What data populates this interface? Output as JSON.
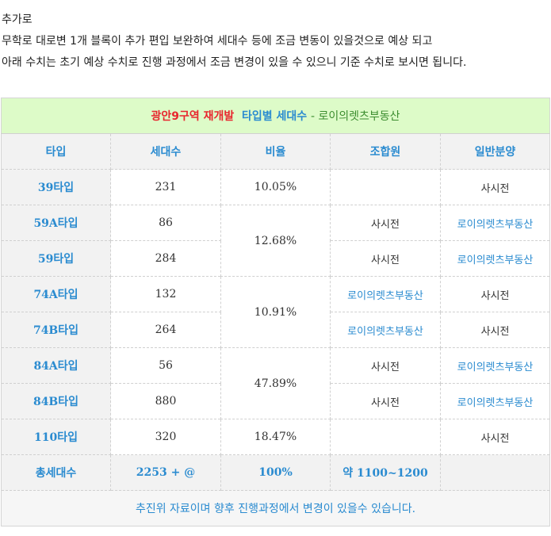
{
  "intro": {
    "line1": "추가로",
    "line2": "무학로 대로변 1개 블록이 추가 편입 보완하여 세대수 등에 조금 변동이 있을것으로 예상 되고",
    "line3": "아래 수치는 초기 예상 수치로 진행 과정에서 조금 변경이 있을 수 있으니 기준 수치로 보시면 됩니다."
  },
  "table": {
    "caption_red": "광안9구역 재개발",
    "caption_blue": "타입별 세대수",
    "caption_green": "- 로이의렛츠부동산",
    "headers": [
      "타입",
      "세대수",
      "비율",
      "조합원",
      "일반분양"
    ],
    "rows": [
      {
        "type": "39타입",
        "count": "231",
        "ratio": "10.05%",
        "member": "",
        "general": "사시전"
      },
      {
        "type": "59A타입",
        "count": "86",
        "ratio": "12.68%",
        "member": "사시전",
        "general": "로이의렛츠부동산"
      },
      {
        "type": "59타입",
        "count": "284",
        "member": "사시전",
        "general": "로이의렛츠부동산"
      },
      {
        "type": "74A타입",
        "count": "132",
        "ratio": "10.91%",
        "member": "로이의렛츠부동산",
        "general": "사시전"
      },
      {
        "type": "74B타입",
        "count": "264",
        "member": "로이의렛츠부동산",
        "general": "사시전"
      },
      {
        "type": "84A타입",
        "count": "56",
        "ratio": "47.89%",
        "member": "사시전",
        "general": "로이의렛츠부동산"
      },
      {
        "type": "84B타입",
        "count": "880",
        "member": "사시전",
        "general": "로이의렛츠부동산"
      },
      {
        "type": "110타입",
        "count": "320",
        "ratio": "18.47%",
        "member": "",
        "general": "사시전"
      }
    ],
    "total": {
      "label": "총세대수",
      "count": "2253 + @",
      "ratio": "100%",
      "member": "약 1100~1200",
      "general": ""
    },
    "footer": "추진위 자료이며 향후 진행과정에서 변경이 있을수 있습니다."
  }
}
